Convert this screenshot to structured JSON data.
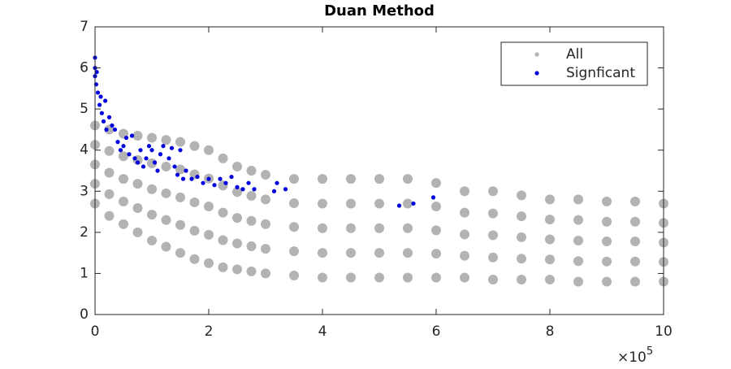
{
  "chart_data": {
    "type": "scatter",
    "title": "Duan Method",
    "xlim": [
      0,
      10
    ],
    "xticks": [
      0,
      2,
      4,
      6,
      8,
      10
    ],
    "ylim": [
      0,
      7
    ],
    "yticks": [
      0,
      1,
      2,
      3,
      4,
      5,
      6,
      7
    ],
    "x_multiplier": {
      "base": "×10",
      "exponent": "5"
    },
    "legend": "upper right",
    "series": [
      {
        "name": "All",
        "color": "#b3b3b3",
        "x": [
          0,
          0,
          0,
          0,
          0,
          0.25,
          0.25,
          0.25,
          0.25,
          0.25,
          0.5,
          0.5,
          0.5,
          0.5,
          0.5,
          0.75,
          0.75,
          0.75,
          0.75,
          0.75,
          1,
          1,
          1,
          1,
          1,
          1.25,
          1.25,
          1.25,
          1.25,
          1.25,
          1.5,
          1.5,
          1.5,
          1.5,
          1.5,
          1.75,
          1.75,
          1.75,
          1.75,
          1.75,
          2,
          2,
          2,
          2,
          2,
          2.25,
          2.25,
          2.25,
          2.25,
          2.25,
          2.5,
          2.5,
          2.5,
          2.5,
          2.5,
          2.75,
          2.75,
          2.75,
          2.75,
          2.75,
          3,
          3,
          3,
          3,
          3,
          3.5,
          3.5,
          3.5,
          3.5,
          3.5,
          4,
          4,
          4,
          4,
          4,
          4.5,
          4.5,
          4.5,
          4.5,
          4.5,
          5,
          5,
          5,
          5,
          5,
          5.5,
          5.5,
          5.5,
          5.5,
          5.5,
          6,
          6,
          6,
          6,
          6,
          6.5,
          6.5,
          6.5,
          6.5,
          6.5,
          7,
          7,
          7,
          7,
          7,
          7.5,
          7.5,
          7.5,
          7.5,
          7.5,
          8,
          8,
          8,
          8,
          8,
          8.5,
          8.5,
          8.5,
          8.5,
          8.5,
          9,
          9,
          9,
          9,
          9,
          9.5,
          9.5,
          9.5,
          9.5,
          9.5,
          10,
          10,
          10,
          10,
          10
        ],
        "values": [
          2.7,
          3.18,
          3.65,
          4.13,
          4.6,
          2.4,
          2.93,
          3.45,
          3.98,
          4.5,
          2.2,
          2.75,
          3.3,
          3.85,
          4.4,
          2.0,
          2.59,
          3.18,
          3.76,
          4.35,
          1.8,
          2.43,
          3.05,
          3.68,
          4.3,
          1.65,
          2.3,
          2.95,
          3.6,
          4.25,
          1.5,
          2.18,
          2.85,
          3.53,
          4.2,
          1.35,
          2.04,
          2.73,
          3.41,
          4.1,
          1.25,
          1.94,
          2.63,
          3.31,
          4.0,
          1.15,
          1.81,
          2.48,
          3.14,
          3.8,
          1.1,
          1.73,
          2.35,
          2.98,
          3.6,
          1.05,
          1.66,
          2.28,
          2.89,
          3.5,
          1.0,
          1.6,
          2.2,
          2.8,
          3.4,
          0.95,
          1.54,
          2.13,
          2.71,
          3.3,
          0.9,
          1.5,
          2.1,
          2.7,
          3.3,
          0.9,
          1.5,
          2.1,
          2.7,
          3.3,
          0.9,
          1.5,
          2.1,
          2.7,
          3.3,
          0.9,
          1.5,
          2.1,
          2.7,
          3.3,
          0.9,
          1.48,
          2.05,
          2.63,
          3.2,
          0.9,
          1.43,
          1.95,
          2.48,
          3.0,
          0.85,
          1.39,
          1.93,
          2.46,
          3.0,
          0.85,
          1.36,
          1.88,
          2.39,
          2.9,
          0.85,
          1.34,
          1.83,
          2.31,
          2.8,
          0.8,
          1.3,
          1.8,
          2.3,
          2.8,
          0.8,
          1.29,
          1.78,
          2.26,
          2.75,
          0.8,
          1.29,
          1.78,
          2.26,
          2.75,
          0.8,
          1.28,
          1.75,
          2.23,
          2.7
        ]
      },
      {
        "name": "Signficant",
        "color": "#0000e0",
        "x": [
          0,
          0,
          0,
          0.02,
          0.03,
          0.05,
          0.08,
          0.1,
          0.12,
          0.15,
          0.18,
          0.2,
          0.25,
          0.3,
          0.35,
          0.4,
          0.45,
          0.5,
          0.55,
          0.6,
          0.65,
          0.7,
          0.75,
          0.8,
          0.85,
          0.9,
          0.95,
          1.0,
          1.05,
          1.1,
          1.15,
          1.2,
          1.3,
          1.35,
          1.4,
          1.45,
          1.5,
          1.55,
          1.6,
          1.7,
          1.8,
          1.9,
          2.0,
          2.1,
          2.2,
          2.3,
          2.4,
          2.5,
          2.6,
          2.7,
          2.8,
          3.15,
          3.2,
          3.35,
          5.35,
          5.6,
          5.95
        ],
        "values": [
          6.25,
          6.0,
          5.8,
          5.6,
          5.9,
          5.4,
          5.1,
          5.3,
          4.9,
          4.7,
          5.2,
          4.5,
          4.8,
          4.6,
          4.5,
          4.2,
          4.0,
          4.1,
          4.3,
          3.9,
          4.35,
          3.8,
          3.7,
          4.0,
          3.6,
          3.8,
          4.1,
          4.0,
          3.7,
          3.5,
          3.9,
          4.1,
          3.8,
          4.05,
          3.6,
          3.4,
          4.0,
          3.3,
          3.5,
          3.3,
          3.35,
          3.2,
          3.3,
          3.15,
          3.3,
          3.2,
          3.35,
          3.1,
          3.05,
          3.2,
          3.05,
          3.0,
          3.2,
          3.05,
          2.65,
          2.7,
          2.85
        ]
      }
    ]
  }
}
